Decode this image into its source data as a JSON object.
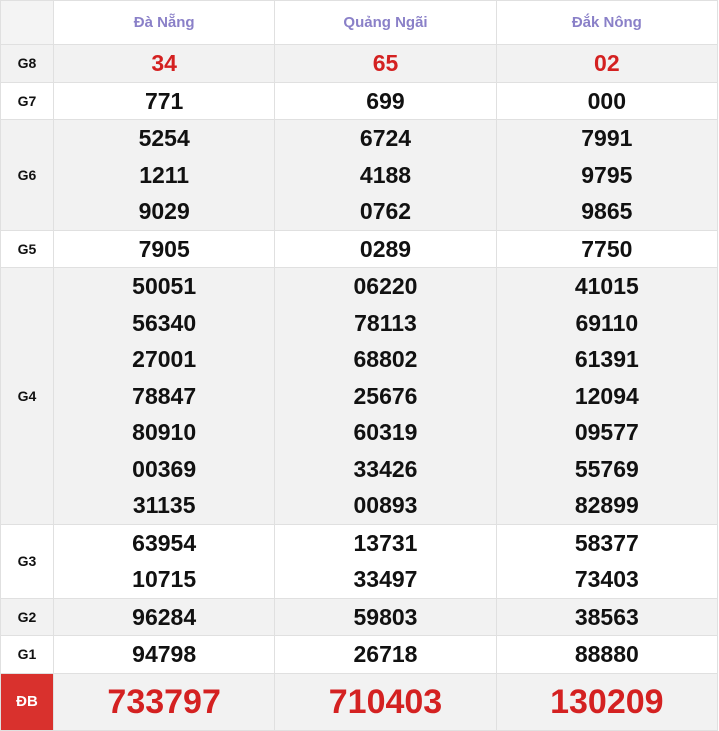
{
  "header": {
    "provinces": [
      "Đà Nẵng",
      "Quảng Ngãi",
      "Đắk Nông"
    ]
  },
  "rows": [
    {
      "label": "G8",
      "results": [
        [
          "34"
        ],
        [
          "65"
        ],
        [
          "02"
        ]
      ]
    },
    {
      "label": "G7",
      "results": [
        [
          "771"
        ],
        [
          "699"
        ],
        [
          "000"
        ]
      ]
    },
    {
      "label": "G6",
      "results": [
        [
          "5254",
          "1211",
          "9029"
        ],
        [
          "6724",
          "4188",
          "0762"
        ],
        [
          "7991",
          "9795",
          "9865"
        ]
      ]
    },
    {
      "label": "G5",
      "results": [
        [
          "7905"
        ],
        [
          "0289"
        ],
        [
          "7750"
        ]
      ]
    },
    {
      "label": "G4",
      "results": [
        [
          "50051",
          "56340",
          "27001",
          "78847",
          "80910",
          "00369",
          "31135"
        ],
        [
          "06220",
          "78113",
          "68802",
          "25676",
          "60319",
          "33426",
          "00893"
        ],
        [
          "41015",
          "69110",
          "61391",
          "12094",
          "09577",
          "55769",
          "82899"
        ]
      ]
    },
    {
      "label": "G3",
      "results": [
        [
          "63954",
          "10715"
        ],
        [
          "13731",
          "33497"
        ],
        [
          "58377",
          "73403"
        ]
      ]
    },
    {
      "label": "G2",
      "results": [
        [
          "96284"
        ],
        [
          "59803"
        ],
        [
          "38563"
        ]
      ]
    },
    {
      "label": "G1",
      "results": [
        [
          "94798"
        ],
        [
          "26718"
        ],
        [
          "88880"
        ]
      ]
    },
    {
      "label": "ĐB",
      "results": [
        [
          "733797"
        ],
        [
          "710403"
        ],
        [
          "130209"
        ]
      ]
    }
  ]
}
